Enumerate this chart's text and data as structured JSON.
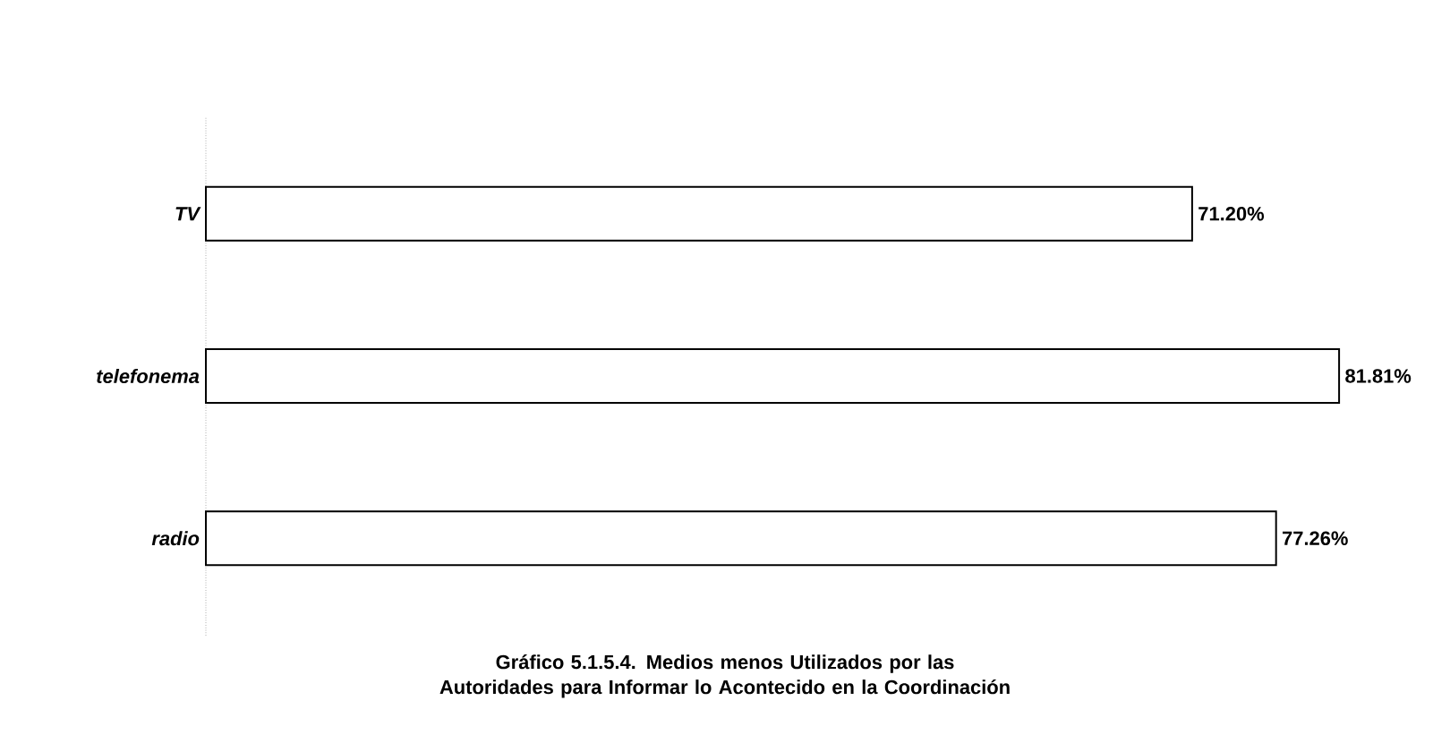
{
  "chart_data": {
    "type": "bar",
    "orientation": "horizontal",
    "title": "Gráfico 5.1.5.4. Medios menos Utilizados por las Autoridades para Informar lo Acontecido en la Coordinación",
    "categories": [
      "TV",
      "telefonema",
      "radio"
    ],
    "values": [
      71.2,
      81.81,
      77.26
    ],
    "value_labels": [
      "71.20%",
      "81.81%",
      "77.26%"
    ],
    "color": "#ffffff"
  }
}
